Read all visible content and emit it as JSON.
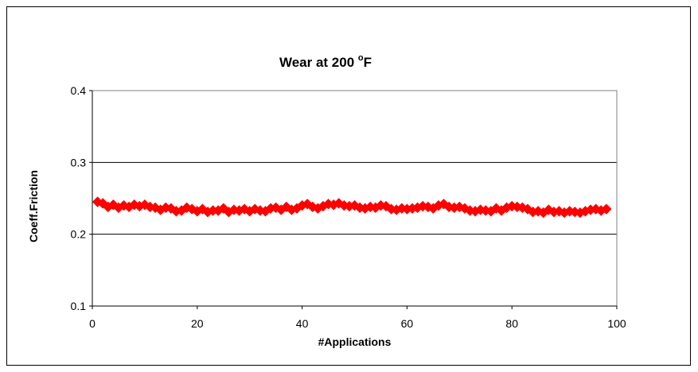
{
  "chart_data": {
    "type": "scatter",
    "title": "Wear  at 200 ",
    "title_superscript": "o",
    "title_suffix": "F",
    "xlabel": "#Applications",
    "ylabel": "Coeff.Friction",
    "xlim": [
      0,
      100
    ],
    "ylim": [
      0.1,
      0.4
    ],
    "x_ticks": [
      0,
      20,
      40,
      60,
      80,
      100
    ],
    "y_ticks": [
      0.1,
      0.2,
      0.3,
      0.4
    ],
    "y_tick_labels": [
      "0.1",
      "0.2",
      "0.3",
      "0.4"
    ],
    "grid": "horizontal",
    "legend": "none",
    "marker": "diamond",
    "color": "#ff0000",
    "series": [
      {
        "x": [
          1,
          2,
          3,
          4,
          5,
          6,
          7,
          8,
          9,
          10,
          11,
          12,
          13,
          14,
          15,
          16,
          17,
          18,
          19,
          20,
          21,
          22,
          23,
          24,
          25,
          26,
          27,
          28,
          29,
          30,
          31,
          32,
          33,
          34,
          35,
          36,
          37,
          38,
          39,
          40,
          41,
          42,
          43,
          44,
          45,
          46,
          47,
          48,
          49,
          50,
          51,
          52,
          53,
          54,
          55,
          56,
          57,
          58,
          59,
          60,
          61,
          62,
          63,
          64,
          65,
          66,
          67,
          68,
          69,
          70,
          71,
          72,
          73,
          74,
          75,
          76,
          77,
          78,
          79,
          80,
          81,
          82,
          83,
          84,
          85,
          86,
          87,
          88,
          89,
          90,
          91,
          92,
          93,
          94,
          95,
          96,
          97,
          98
        ],
        "y": [
          0.245,
          0.243,
          0.238,
          0.241,
          0.237,
          0.24,
          0.238,
          0.241,
          0.239,
          0.241,
          0.238,
          0.237,
          0.234,
          0.237,
          0.236,
          0.232,
          0.233,
          0.237,
          0.235,
          0.232,
          0.235,
          0.231,
          0.233,
          0.233,
          0.236,
          0.231,
          0.234,
          0.233,
          0.235,
          0.232,
          0.235,
          0.233,
          0.232,
          0.236,
          0.237,
          0.234,
          0.238,
          0.234,
          0.236,
          0.24,
          0.242,
          0.238,
          0.236,
          0.239,
          0.242,
          0.241,
          0.243,
          0.24,
          0.239,
          0.24,
          0.237,
          0.236,
          0.238,
          0.237,
          0.24,
          0.239,
          0.235,
          0.234,
          0.236,
          0.235,
          0.236,
          0.237,
          0.239,
          0.238,
          0.236,
          0.24,
          0.242,
          0.238,
          0.237,
          0.238,
          0.236,
          0.233,
          0.232,
          0.234,
          0.233,
          0.232,
          0.236,
          0.233,
          0.237,
          0.239,
          0.238,
          0.237,
          0.235,
          0.231,
          0.232,
          0.23,
          0.234,
          0.231,
          0.232,
          0.23,
          0.232,
          0.231,
          0.23,
          0.232,
          0.234,
          0.235,
          0.233,
          0.235
        ]
      }
    ]
  }
}
